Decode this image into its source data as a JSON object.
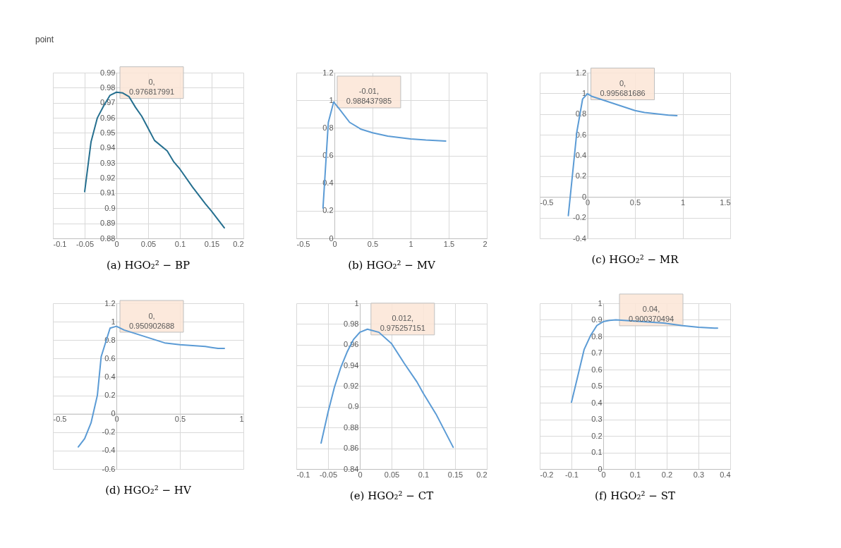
{
  "chart_data": [
    {
      "type": "line",
      "title": "(a) HGO₂² − BP",
      "annotations": [
        "point",
        {
          "text": "0, 0.976817991",
          "x": 0,
          "y": 0.976817991
        }
      ],
      "x": [
        -0.05,
        -0.04,
        -0.03,
        -0.02,
        -0.01,
        0,
        0.01,
        0.02,
        0.03,
        0.04,
        0.05,
        0.06,
        0.08,
        0.09,
        0.1,
        0.12,
        0.14,
        0.15,
        0.17
      ],
      "series": [
        {
          "color": "#256f8f",
          "values": [
            0.911,
            0.944,
            0.96,
            0.968,
            0.975,
            0.977,
            0.9765,
            0.974,
            0.967,
            0.961,
            0.953,
            0.945,
            0.938,
            0.931,
            0.926,
            0.914,
            0.903,
            0.898,
            0.887
          ]
        }
      ],
      "xlim": [
        -0.1,
        0.2
      ],
      "xticks": [
        -0.1,
        -0.05,
        0,
        0.05,
        0.1,
        0.15,
        0.2
      ],
      "ylim": [
        0.88,
        0.99
      ],
      "yticks": [
        0.88,
        0.89,
        0.9,
        0.91,
        0.92,
        0.93,
        0.94,
        0.95,
        0.96,
        0.97,
        0.98,
        0.99
      ],
      "grid": true,
      "legend": false,
      "marker": "none"
    },
    {
      "type": "line",
      "title": "(b) HGO₂² − MV",
      "annotations": [
        {
          "text": "-0.01, 0.988437985",
          "x": -0.01,
          "y": 0.988437985
        }
      ],
      "x": [
        -0.15,
        -0.08,
        -0.01,
        0.06,
        0.2,
        0.35,
        0.5,
        0.7,
        1.0,
        1.2,
        1.46
      ],
      "series": [
        {
          "color": "#5b9bd5",
          "values": [
            0.22,
            0.84,
            0.988,
            0.94,
            0.84,
            0.79,
            0.765,
            0.74,
            0.72,
            0.712,
            0.705
          ]
        }
      ],
      "xlim": [
        -0.5,
        2
      ],
      "xticks": [
        -0.5,
        0,
        0.5,
        1,
        1.5,
        2
      ],
      "ylim": [
        0,
        1.2
      ],
      "yticks": [
        0,
        0.2,
        0.4,
        0.6,
        0.8,
        1,
        1.2
      ],
      "grid": true,
      "legend": false,
      "marker": "none"
    },
    {
      "type": "line",
      "title": "(c) HGO₂² − MR",
      "annotations": [
        {
          "text": "0, 0.995681686",
          "x": 0,
          "y": 0.995681686
        }
      ],
      "x": [
        -0.2,
        -0.11,
        -0.05,
        0,
        0.05,
        0.5,
        0.6,
        0.75,
        0.85,
        0.94
      ],
      "series": [
        {
          "color": "#5b9bd5",
          "values": [
            -0.18,
            0.63,
            0.945,
            0.996,
            0.97,
            0.834,
            0.815,
            0.8,
            0.79,
            0.785
          ]
        }
      ],
      "xlim": [
        -0.5,
        1.5
      ],
      "xticks": [
        -0.5,
        0,
        0.5,
        1,
        1.5
      ],
      "ylim": [
        -0.4,
        1.2
      ],
      "yticks": [
        -0.4,
        -0.2,
        0,
        0.2,
        0.4,
        0.6,
        0.8,
        1,
        1.2
      ],
      "grid": true,
      "legend": false,
      "marker": "none"
    },
    {
      "type": "line",
      "title": "(d) HGO₂² − HV",
      "annotations": [
        {
          "text": "0, 0.950902688",
          "x": 0,
          "y": 0.950902688
        }
      ],
      "x": [
        -0.3,
        -0.25,
        -0.2,
        -0.15,
        -0.12,
        -0.05,
        0,
        0.06,
        0.38,
        0.5,
        0.7,
        0.75,
        0.8,
        0.85
      ],
      "series": [
        {
          "color": "#5b9bd5",
          "values": [
            -0.36,
            -0.27,
            -0.1,
            0.2,
            0.62,
            0.93,
            0.95,
            0.91,
            0.77,
            0.75,
            0.73,
            0.72,
            0.71,
            0.71
          ]
        }
      ],
      "xlim": [
        -0.5,
        1
      ],
      "xticks": [
        -0.5,
        0,
        0.5,
        1
      ],
      "ylim": [
        -0.6,
        1.2
      ],
      "yticks": [
        -0.6,
        -0.4,
        -0.2,
        0,
        0.2,
        0.4,
        0.6,
        0.8,
        1,
        1.2
      ],
      "grid": true,
      "legend": false,
      "marker": "none"
    },
    {
      "type": "line",
      "title": "(e) HGO₂² − CT",
      "annotations": [
        {
          "text": "0.012, 0.975257151",
          "x": 0.012,
          "y": 0.975257151
        }
      ],
      "x": [
        -0.061,
        -0.05,
        -0.04,
        -0.03,
        -0.02,
        -0.01,
        0,
        0.012,
        0.03,
        0.05,
        0.07,
        0.09,
        0.1,
        0.12,
        0.147
      ],
      "series": [
        {
          "color": "#5b9bd5",
          "values": [
            0.865,
            0.895,
            0.919,
            0.938,
            0.953,
            0.965,
            0.972,
            0.975,
            0.972,
            0.961,
            0.942,
            0.924,
            0.913,
            0.893,
            0.861
          ]
        }
      ],
      "xlim": [
        -0.1,
        0.2
      ],
      "xticks": [
        -0.1,
        -0.05,
        0,
        0.05,
        0.1,
        0.15,
        0.2
      ],
      "ylim": [
        0.84,
        1
      ],
      "yticks": [
        0.84,
        0.86,
        0.88,
        0.9,
        0.92,
        0.94,
        0.96,
        0.98,
        1
      ],
      "grid": true,
      "legend": false,
      "marker": "none"
    },
    {
      "type": "line",
      "title": "(f) HGO₂² − ST",
      "annotations": [
        {
          "text": "0.04, 0.900370494",
          "x": 0.04,
          "y": 0.900370494
        }
      ],
      "x": [
        -0.1,
        -0.08,
        -0.06,
        -0.04,
        -0.02,
        0,
        0.02,
        0.04,
        0.19,
        0.25,
        0.3,
        0.35,
        0.36
      ],
      "series": [
        {
          "color": "#5b9bd5",
          "values": [
            0.403,
            0.562,
            0.722,
            0.805,
            0.866,
            0.889,
            0.897,
            0.9,
            0.881,
            0.865,
            0.855,
            0.85,
            0.85
          ]
        }
      ],
      "xlim": [
        -0.2,
        0.4
      ],
      "xticks": [
        -0.2,
        -0.1,
        0,
        0.1,
        0.2,
        0.3,
        0.4
      ],
      "ylim": [
        0,
        1
      ],
      "yticks": [
        0,
        0.1,
        0.2,
        0.3,
        0.4,
        0.5,
        0.6,
        0.7,
        0.8,
        0.9,
        1
      ],
      "grid": true,
      "legend": false,
      "marker": "none"
    }
  ]
}
